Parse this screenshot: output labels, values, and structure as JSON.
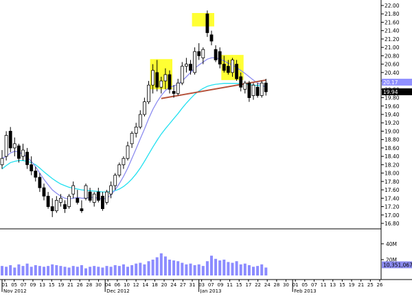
{
  "chart_data": {
    "type": "candlestick",
    "title": "",
    "xlabel": "",
    "ylabel": "",
    "ylim": [
      16.8,
      22.0
    ],
    "y_ticks": [
      16.8,
      17.0,
      17.2,
      17.4,
      17.6,
      17.8,
      18.0,
      18.2,
      18.4,
      18.6,
      18.8,
      19.0,
      19.2,
      19.4,
      19.6,
      19.8,
      20.0,
      20.2,
      20.4,
      20.6,
      20.8,
      21.0,
      21.2,
      21.4,
      21.6,
      21.8,
      22.0
    ],
    "y_tick_labels": [
      "16.80",
      "17.00",
      "17.20",
      "17.40",
      "17.60",
      "17.80",
      "18.00",
      "18.20",
      "18.40",
      "18.60",
      "18.80",
      "19.00",
      "19.20",
      "19.40",
      "19.60",
      "19.80",
      "20.00",
      "20.20",
      "20.40",
      "20.60",
      "20.80",
      "21.00",
      "21.20",
      "21.40",
      "21.60",
      "21.80",
      "22.00"
    ],
    "date_labels": [
      "01",
      "05",
      "07",
      "09",
      "13",
      "15",
      "19",
      "21",
      "26",
      "28",
      "30",
      "04",
      "06",
      "10",
      "12",
      "14",
      "18",
      "20",
      "24",
      "27",
      "31",
      "03",
      "07",
      "09",
      "11",
      "15",
      "17",
      "22",
      "24",
      "28",
      "30",
      "01",
      "05",
      "07",
      "11",
      "13",
      "15",
      "19",
      "21",
      "25",
      "26"
    ],
    "month_labels": [
      {
        "text": "Nov 2012",
        "at_index": 0
      },
      {
        "text": "Dec 2012",
        "at_index": 11
      },
      {
        "text": "Jan 2013",
        "at_index": 21
      },
      {
        "text": "Feb 2013",
        "at_index": 31
      }
    ],
    "candles": [
      {
        "o": 18.2,
        "h": 18.55,
        "l": 18.1,
        "c": 18.35
      },
      {
        "o": 18.4,
        "h": 19.0,
        "l": 18.3,
        "c": 18.9
      },
      {
        "o": 19.0,
        "h": 19.1,
        "l": 18.5,
        "c": 18.6
      },
      {
        "o": 18.6,
        "h": 18.85,
        "l": 18.4,
        "c": 18.7
      },
      {
        "o": 18.65,
        "h": 18.7,
        "l": 18.25,
        "c": 18.35
      },
      {
        "o": 18.4,
        "h": 18.7,
        "l": 18.3,
        "c": 18.55
      },
      {
        "o": 18.5,
        "h": 18.6,
        "l": 18.1,
        "c": 18.2
      },
      {
        "o": 18.2,
        "h": 18.4,
        "l": 17.95,
        "c": 18.05
      },
      {
        "o": 18.05,
        "h": 18.15,
        "l": 17.8,
        "c": 17.9
      },
      {
        "o": 17.9,
        "h": 18.0,
        "l": 17.55,
        "c": 17.65
      },
      {
        "o": 17.65,
        "h": 17.75,
        "l": 17.35,
        "c": 17.45
      },
      {
        "o": 17.45,
        "h": 17.55,
        "l": 17.15,
        "c": 17.2
      },
      {
        "o": 17.2,
        "h": 17.4,
        "l": 16.95,
        "c": 17.1
      },
      {
        "o": 17.1,
        "h": 17.45,
        "l": 17.05,
        "c": 17.35
      },
      {
        "o": 17.3,
        "h": 17.5,
        "l": 17.2,
        "c": 17.4
      },
      {
        "o": 17.25,
        "h": 17.35,
        "l": 17.05,
        "c": 17.15
      },
      {
        "o": 17.2,
        "h": 17.5,
        "l": 17.15,
        "c": 17.45
      },
      {
        "o": 17.5,
        "h": 17.8,
        "l": 17.4,
        "c": 17.7
      },
      {
        "o": 17.4,
        "h": 17.6,
        "l": 17.25,
        "c": 17.3
      },
      {
        "o": 17.15,
        "h": 17.35,
        "l": 17.05,
        "c": 17.1
      },
      {
        "o": 17.4,
        "h": 17.75,
        "l": 17.35,
        "c": 17.7
      },
      {
        "o": 17.55,
        "h": 17.65,
        "l": 17.3,
        "c": 17.35
      },
      {
        "o": 17.3,
        "h": 17.55,
        "l": 17.2,
        "c": 17.5
      },
      {
        "o": 17.55,
        "h": 17.65,
        "l": 17.3,
        "c": 17.35
      },
      {
        "o": 17.45,
        "h": 17.55,
        "l": 17.1,
        "c": 17.15
      },
      {
        "o": 17.3,
        "h": 17.6,
        "l": 17.25,
        "c": 17.55
      },
      {
        "o": 17.5,
        "h": 17.8,
        "l": 17.4,
        "c": 17.7
      },
      {
        "o": 17.7,
        "h": 18.0,
        "l": 17.6,
        "c": 17.95
      },
      {
        "o": 17.95,
        "h": 18.25,
        "l": 17.9,
        "c": 18.2
      },
      {
        "o": 18.2,
        "h": 18.4,
        "l": 18.1,
        "c": 18.35
      },
      {
        "o": 18.35,
        "h": 18.75,
        "l": 18.3,
        "c": 18.65
      },
      {
        "o": 18.7,
        "h": 19.0,
        "l": 18.6,
        "c": 18.95
      },
      {
        "o": 18.95,
        "h": 19.2,
        "l": 18.85,
        "c": 19.1
      },
      {
        "o": 19.1,
        "h": 19.5,
        "l": 19.05,
        "c": 19.4
      },
      {
        "o": 19.4,
        "h": 19.8,
        "l": 19.35,
        "c": 19.7
      },
      {
        "o": 19.7,
        "h": 20.2,
        "l": 19.65,
        "c": 20.1
      },
      {
        "o": 20.1,
        "h": 20.6,
        "l": 19.9,
        "c": 20.45
      },
      {
        "o": 20.4,
        "h": 20.7,
        "l": 19.95,
        "c": 20.05
      },
      {
        "o": 20.05,
        "h": 20.3,
        "l": 19.9,
        "c": 20.2
      },
      {
        "o": 20.2,
        "h": 20.5,
        "l": 20.0,
        "c": 20.35
      },
      {
        "o": 20.35,
        "h": 20.45,
        "l": 19.9,
        "c": 20.0
      },
      {
        "o": 19.95,
        "h": 20.1,
        "l": 19.8,
        "c": 19.9
      },
      {
        "o": 19.9,
        "h": 20.25,
        "l": 19.85,
        "c": 20.15
      },
      {
        "o": 20.15,
        "h": 20.65,
        "l": 20.1,
        "c": 20.55
      },
      {
        "o": 20.55,
        "h": 20.75,
        "l": 20.4,
        "c": 20.6
      },
      {
        "o": 20.6,
        "h": 20.7,
        "l": 20.35,
        "c": 20.45
      },
      {
        "o": 20.4,
        "h": 21.0,
        "l": 20.35,
        "c": 20.9
      },
      {
        "o": 20.9,
        "h": 21.1,
        "l": 20.7,
        "c": 20.8
      },
      {
        "o": 20.75,
        "h": 21.0,
        "l": 20.6,
        "c": 20.95
      },
      {
        "o": 21.8,
        "h": 21.88,
        "l": 21.25,
        "c": 21.35
      },
      {
        "o": 21.3,
        "h": 21.4,
        "l": 21.05,
        "c": 21.15
      },
      {
        "o": 20.95,
        "h": 21.05,
        "l": 20.65,
        "c": 20.7
      },
      {
        "o": 20.9,
        "h": 21.0,
        "l": 20.5,
        "c": 20.6
      },
      {
        "o": 20.6,
        "h": 20.8,
        "l": 20.4,
        "c": 20.45
      },
      {
        "o": 20.55,
        "h": 20.7,
        "l": 20.35,
        "c": 20.4
      },
      {
        "o": 20.4,
        "h": 20.75,
        "l": 20.3,
        "c": 20.7
      },
      {
        "o": 20.6,
        "h": 20.7,
        "l": 20.2,
        "c": 20.25
      },
      {
        "o": 20.3,
        "h": 20.4,
        "l": 19.95,
        "c": 20.05
      },
      {
        "o": 20.0,
        "h": 20.2,
        "l": 19.9,
        "c": 20.15
      },
      {
        "o": 20.15,
        "h": 20.2,
        "l": 19.7,
        "c": 19.8
      },
      {
        "o": 19.85,
        "h": 20.15,
        "l": 19.75,
        "c": 20.1
      },
      {
        "o": 20.05,
        "h": 20.15,
        "l": 19.8,
        "c": 19.85
      },
      {
        "o": 19.85,
        "h": 20.2,
        "l": 19.8,
        "c": 20.15
      },
      {
        "o": 20.15,
        "h": 20.25,
        "l": 19.85,
        "c": 19.94
      }
    ],
    "ma_fast": [
      18.35,
      18.4,
      18.48,
      18.52,
      18.5,
      18.45,
      18.38,
      18.28,
      18.15,
      18.0,
      17.85,
      17.72,
      17.6,
      17.52,
      17.45,
      17.4,
      17.38,
      17.4,
      17.42,
      17.4,
      17.4,
      17.42,
      17.42,
      17.4,
      17.38,
      17.4,
      17.48,
      17.6,
      17.75,
      17.92,
      18.12,
      18.35,
      18.58,
      18.82,
      19.05,
      19.3,
      19.52,
      19.7,
      19.85,
      19.97,
      20.05,
      20.08,
      20.12,
      20.2,
      20.3,
      20.4,
      20.5,
      20.58,
      20.65,
      20.72,
      20.75,
      20.75,
      20.72,
      20.68,
      20.62,
      20.58,
      20.52,
      20.45,
      20.38,
      20.3,
      20.22,
      20.15,
      20.1,
      20.05
    ],
    "ma_slow": [
      18.1,
      18.18,
      18.25,
      18.28,
      18.3,
      18.3,
      18.28,
      18.25,
      18.2,
      18.12,
      18.03,
      17.95,
      17.87,
      17.8,
      17.74,
      17.7,
      17.66,
      17.64,
      17.62,
      17.6,
      17.59,
      17.58,
      17.57,
      17.56,
      17.55,
      17.55,
      17.56,
      17.58,
      17.62,
      17.68,
      17.76,
      17.86,
      17.98,
      18.12,
      18.28,
      18.45,
      18.62,
      18.78,
      18.93,
      19.06,
      19.18,
      19.3,
      19.42,
      19.55,
      19.67,
      19.78,
      19.88,
      19.96,
      20.02,
      20.07,
      20.1,
      20.12,
      20.13,
      20.14,
      20.14,
      20.14,
      20.14,
      20.13,
      20.12,
      20.11,
      20.1,
      20.09,
      20.08,
      20.07
    ],
    "volume": {
      "ticks": [
        20,
        40
      ],
      "tick_labels": [
        "20M",
        "40M"
      ],
      "ylim": [
        0,
        52
      ],
      "values": [
        12,
        11,
        13,
        10,
        14,
        12,
        15,
        11,
        13,
        12,
        11,
        12,
        14,
        13,
        12,
        11,
        10,
        12,
        11,
        13,
        9,
        11,
        12,
        11,
        10,
        12,
        11,
        13,
        12,
        14,
        11,
        13,
        15,
        16,
        14,
        18,
        20,
        23,
        28,
        24,
        20,
        19,
        18,
        16,
        14,
        15,
        13,
        14,
        12,
        18,
        25,
        21,
        19,
        20,
        17,
        16,
        18,
        14,
        15,
        13,
        11,
        12,
        14,
        10
      ],
      "last_value_label": "10,351,067",
      "bar_colors": [
        "#8c8cff"
      ]
    },
    "price_labels": [
      {
        "text": "20.17",
        "value": 20.17,
        "color": "#9090ff"
      },
      {
        "text": "19.94",
        "value": 19.94,
        "color": "#000000"
      }
    ],
    "trendline": {
      "from": {
        "index": 38,
        "value": 19.78
      },
      "to": {
        "index": 63,
        "value": 20.22
      },
      "color": "#b5523b"
    },
    "highlight_boxes": [
      {
        "index_from": 36,
        "index_to": 40,
        "value_from": 20.0,
        "value_to": 20.72
      },
      {
        "index_from": 46,
        "index_to": 50,
        "value_from": 21.5,
        "value_to": 21.82
      },
      {
        "index_from": 53,
        "index_to": 57,
        "value_from": 20.22,
        "value_to": 20.82
      }
    ],
    "colors": {
      "ma_fast": "#8c8cf0",
      "ma_slow": "#20e0f0",
      "highlight": "#ffff33",
      "trendline": "#b5523b",
      "candle": "#000000"
    }
  }
}
